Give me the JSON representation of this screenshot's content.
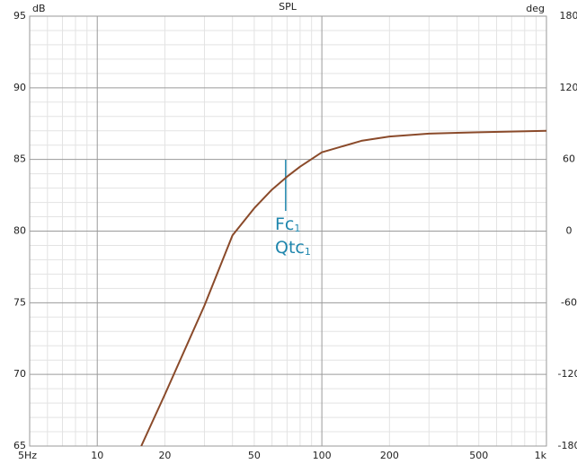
{
  "chart_data": {
    "type": "line",
    "title": "SPL",
    "y_label": "dB",
    "y2_label": "deg",
    "x_log": true,
    "x": [
      15.7,
      20,
      30,
      40,
      50,
      60,
      70,
      80,
      100,
      150,
      200,
      300,
      500,
      1000
    ],
    "series": [
      {
        "name": "SPL",
        "color": "#8a4a2a",
        "values": [
          65,
          68.6,
          74.8,
          79.7,
          81.6,
          82.9,
          83.8,
          84.5,
          85.5,
          86.3,
          86.6,
          86.8,
          86.9,
          87.0
        ]
      }
    ],
    "xlim": [
      5,
      1000
    ],
    "xticks": [
      {
        "value": 5,
        "label": "5Hz"
      },
      10,
      20,
      50,
      100,
      200,
      500,
      {
        "value": 1000,
        "label": "1k"
      }
    ],
    "xmajor": [
      10,
      100
    ],
    "xminor": [
      6,
      7,
      8,
      9,
      20,
      30,
      40,
      50,
      60,
      70,
      80,
      90,
      200,
      300,
      400,
      500,
      600,
      700,
      800,
      900
    ],
    "ylim": [
      65,
      95
    ],
    "yticks": [
      65,
      70,
      75,
      80,
      85,
      90,
      95
    ],
    "yminor": [
      66,
      67,
      68,
      69,
      71,
      72,
      73,
      74,
      76,
      77,
      78,
      79,
      81,
      82,
      83,
      84,
      86,
      87,
      88,
      89,
      91,
      92,
      93,
      94
    ],
    "y2lim": [
      -180,
      180
    ],
    "y2ticks": [
      -180,
      -120,
      -60,
      0,
      60,
      120,
      180
    ],
    "grid": true,
    "marker": {
      "x": 69,
      "color": "#1f86ad",
      "labels": [
        {
          "text": "Fc",
          "sub": "1"
        },
        {
          "text": "Qtc",
          "sub": "1"
        }
      ]
    }
  }
}
